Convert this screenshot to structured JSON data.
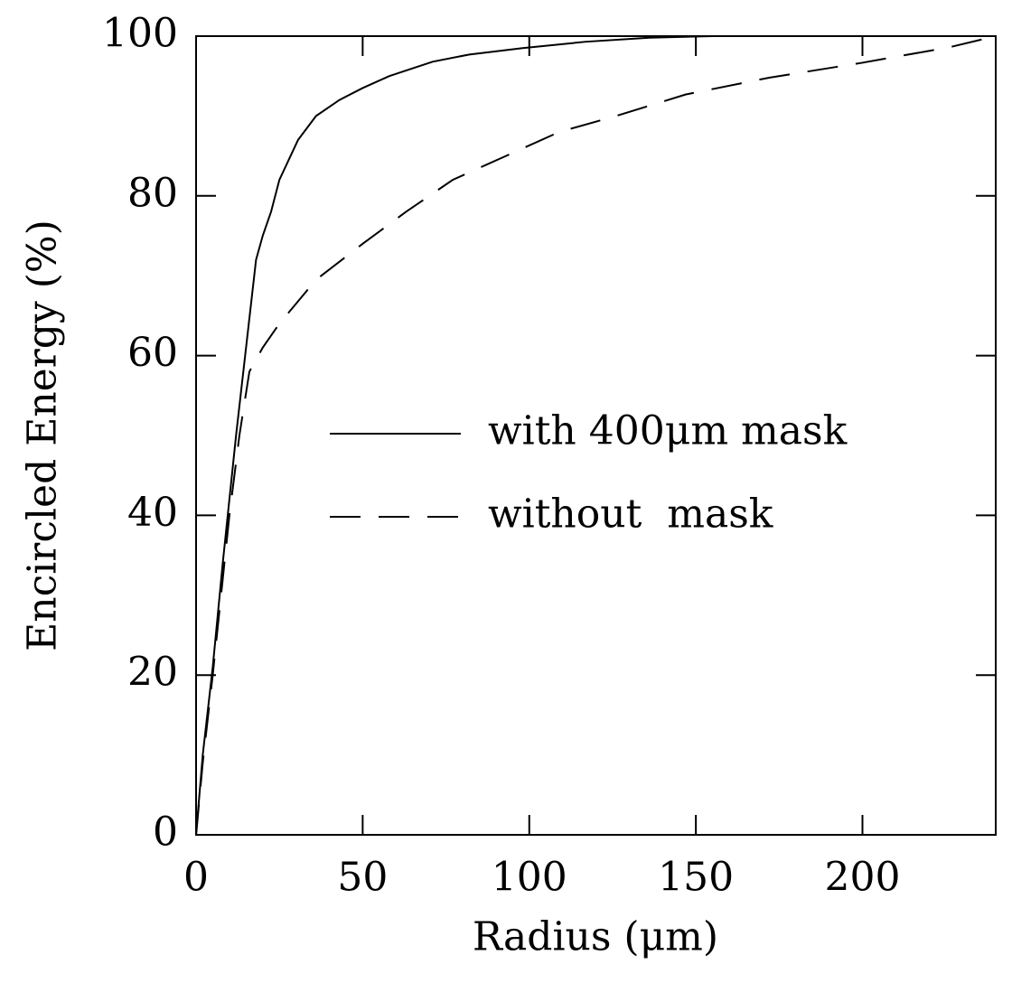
{
  "chart_data": {
    "type": "line",
    "xlabel": "Radius (μm)",
    "ylabel": "Encircled Energy (%)",
    "xlim": [
      0,
      240
    ],
    "xticks": [
      0,
      50,
      100,
      150,
      200
    ],
    "ylim": [
      0,
      100
    ],
    "yticks": [
      0,
      20,
      40,
      60,
      80,
      100
    ],
    "legend": "right",
    "series": [
      {
        "name": "with 400μm mask",
        "color": "#000000",
        "style": "solid",
        "x": [
          0,
          2,
          5,
          8,
          10,
          12,
          15,
          18,
          20,
          22.5,
          25,
          30.6,
          36,
          43,
          50,
          58,
          71,
          82,
          98,
          117,
          136,
          155,
          160
        ],
        "values": [
          0,
          10,
          21,
          34,
          42,
          50,
          61,
          72,
          75,
          78,
          82,
          87,
          90,
          92,
          93.5,
          95,
          96.8,
          97.7,
          98.5,
          99.3,
          99.8,
          100,
          100
        ]
      },
      {
        "name": "without  mask",
        "color": "#000000",
        "style": "dashed",
        "x": [
          0,
          2,
          5,
          8,
          10,
          13,
          16,
          20,
          25,
          36,
          50,
          63,
          77,
          93,
          109,
          126,
          147,
          172,
          199,
          226,
          240
        ],
        "values": [
          0,
          9,
          20,
          32,
          40,
          50,
          58,
          61,
          64,
          69.5,
          74,
          78,
          82,
          85,
          88,
          90,
          92.7,
          94.8,
          96.6,
          98.6,
          100
        ]
      }
    ]
  }
}
